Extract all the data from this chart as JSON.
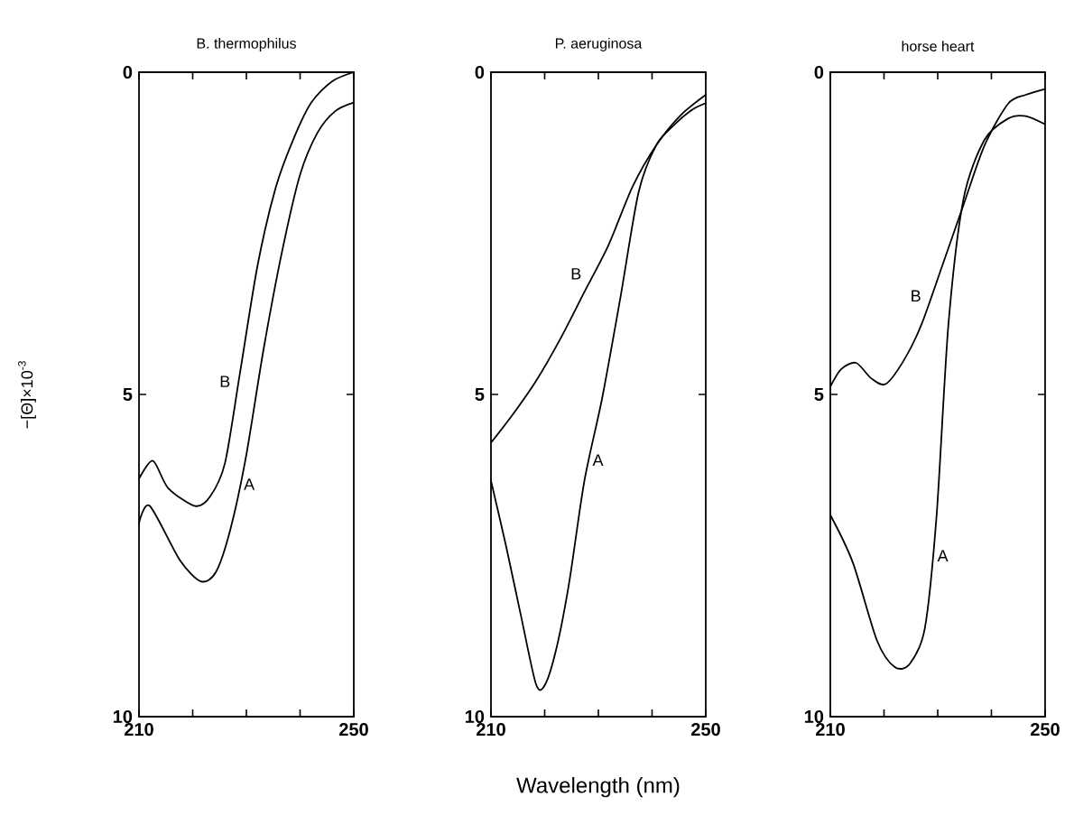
{
  "chart_data": [
    {
      "type": "line",
      "title": "B. thermophilus",
      "ylabel": "−[Θ]×10$^{-3}$",
      "xlim": [
        210,
        250
      ],
      "ylim": [
        10,
        0
      ],
      "xticks": [
        210,
        {
          "value": 220,
          "label": null
        },
        {
          "value": 230,
          "label": null
        },
        {
          "value": 240,
          "label": null
        },
        250
      ],
      "yticks": [
        0,
        5,
        10
      ],
      "legend": false,
      "grid": false,
      "marker": "none",
      "line_style": "solid",
      "series": [
        {
          "name": "A",
          "color": "#000000",
          "x": [
            210,
            212,
            217.6,
            221.5,
            224.3,
            227,
            229.9,
            233.2,
            236.6,
            240,
            243.3,
            246.6,
            250
          ],
          "values": [
            7.0,
            6.73,
            7.57,
            7.9,
            7.76,
            7.1,
            5.98,
            4.3,
            2.8,
            1.59,
            0.93,
            0.6,
            0.47
          ]
        },
        {
          "name": "B",
          "color": "#000000",
          "x": [
            210,
            212.6,
            215.4,
            220.4,
            223.2,
            226,
            228.8,
            232.1,
            235.5,
            238.8,
            242.1,
            246,
            250
          ],
          "values": [
            6.31,
            6.03,
            6.45,
            6.73,
            6.59,
            6.07,
            4.67,
            2.99,
            1.78,
            1.03,
            0.47,
            0.14,
            0
          ]
        }
      ]
    },
    {
      "type": "line",
      "title": "P. aeruginosa",
      "xlabel": "Wavelength (nm)",
      "xlim": [
        210,
        250
      ],
      "ylim": [
        10,
        0
      ],
      "xticks": [
        210,
        {
          "value": 220,
          "label": null
        },
        {
          "value": 230,
          "label": null
        },
        {
          "value": 240,
          "label": null
        },
        250
      ],
      "yticks": [
        0,
        5,
        10
      ],
      "legend": false,
      "grid": false,
      "marker": "none",
      "line_style": "solid",
      "series": [
        {
          "name": "A",
          "color": "#000000",
          "x": [
            210,
            212.8,
            215.6,
            218.4,
            220.1,
            222.3,
            224.6,
            227.4,
            230.7,
            234.1,
            237.5,
            240.8,
            244.2,
            247.5,
            250
          ],
          "values": [
            6.34,
            7.35,
            8.44,
            9.5,
            9.5,
            8.9,
            7.9,
            6.34,
            5.06,
            3.5,
            1.86,
            1.13,
            0.81,
            0.58,
            0.48
          ]
        },
        {
          "name": "B",
          "color": "#000000",
          "x": [
            210,
            213.9,
            218.4,
            222.9,
            227.4,
            231.9,
            236.4,
            240.8,
            245.3,
            250
          ],
          "values": [
            5.75,
            5.33,
            4.79,
            4.14,
            3.41,
            2.68,
            1.77,
            1.13,
            0.67,
            0.35
          ]
        }
      ]
    },
    {
      "type": "line",
      "title": "horse heart",
      "xlim": [
        210,
        250
      ],
      "ylim": [
        10,
        0
      ],
      "xticks": [
        210,
        {
          "value": 220,
          "label": null
        },
        {
          "value": 230,
          "label": null
        },
        {
          "value": 240,
          "label": null
        },
        250
      ],
      "yticks": [
        0,
        5,
        10
      ],
      "legend": false,
      "grid": false,
      "marker": "none",
      "line_style": "solid",
      "series": [
        {
          "name": "A",
          "color": "#000000",
          "x": [
            210,
            214.2,
            218.7,
            222,
            224.8,
            227.6,
            229.8,
            232,
            234.8,
            238.7,
            243.1,
            246.4,
            250
          ],
          "values": [
            6.87,
            7.61,
            8.82,
            9.23,
            9.18,
            8.63,
            6.87,
            3.91,
            1.97,
            1.05,
            0.72,
            0.68,
            0.81
          ]
        },
        {
          "name": "B",
          "color": "#000000",
          "x": [
            210,
            212,
            214.8,
            217.6,
            220.3,
            223.7,
            227,
            230.9,
            234.8,
            238.7,
            243.1,
            246.4,
            250
          ],
          "values": [
            4.88,
            4.61,
            4.51,
            4.75,
            4.84,
            4.47,
            3.91,
            2.99,
            2.06,
            1.14,
            0.49,
            0.35,
            0.26
          ]
        }
      ]
    }
  ]
}
